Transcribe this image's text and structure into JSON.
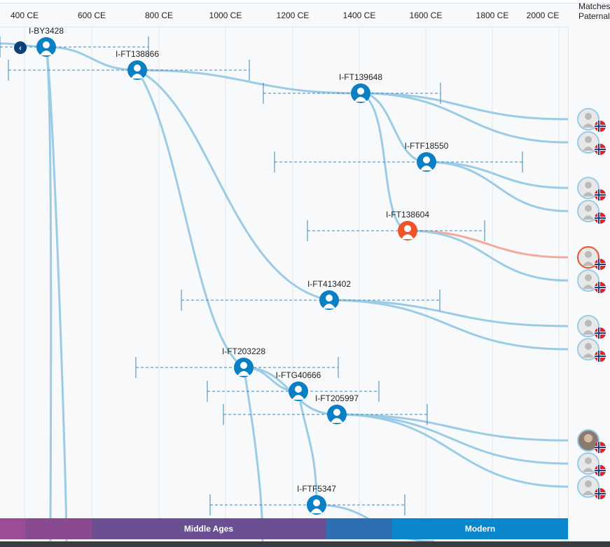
{
  "axis": {
    "ticks": [
      "400 CE",
      "600 CE",
      "800 CE",
      "1000 CE",
      "1200 CE",
      "1400 CE",
      "1600 CE",
      "1800 CE",
      "2000 CE"
    ],
    "matches_header": [
      "Matches",
      "Paternal"
    ]
  },
  "colors": {
    "line": "#9ccbe6",
    "node": "#0a7fc4",
    "highlight": "#f0522a",
    "highlight_line": "#f4a99a",
    "error_bar": "#3a86b8"
  },
  "nodes": [
    "I-BY3428",
    "I-FT138866",
    "I-FT139648",
    "I-FTF18550",
    "I-FT138604",
    "I-FT413402",
    "I-FT203228",
    "I-FTG40666",
    "I-FT205997",
    "I-FTF5347"
  ],
  "highlighted_node": "I-FT138604",
  "match_count": 11,
  "match_flag": "norway-flag-icon",
  "eras": {
    "middle_ages": "Middle Ages",
    "modern": "Modern"
  },
  "nav": {
    "back_icon": "chevron-left-icon"
  }
}
